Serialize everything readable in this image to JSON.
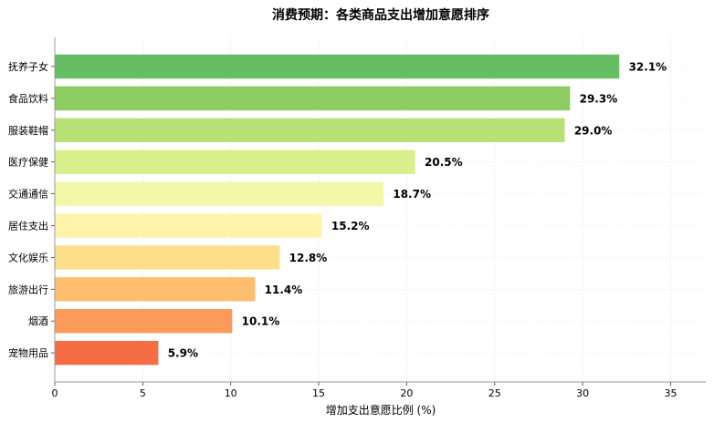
{
  "chart_data": {
    "type": "bar",
    "orientation": "horizontal",
    "title": "消费预期：各类商品支出增加意愿排序",
    "xlabel": "增加支出意愿比例 (%)",
    "ylabel": "",
    "xlim": [
      0,
      37
    ],
    "xticks": [
      0,
      5,
      10,
      15,
      20,
      25,
      30,
      35
    ],
    "grid": true,
    "value_suffix": "%",
    "categories": [
      "抚养子女",
      "食品饮料",
      "服装鞋帽",
      "医疗保健",
      "交通通信",
      "居住支出",
      "文化娱乐",
      "旅游出行",
      "烟酒",
      "宠物用品"
    ],
    "values": [
      32.1,
      29.3,
      29.0,
      20.5,
      18.7,
      15.2,
      12.8,
      11.4,
      10.1,
      5.9
    ],
    "colors": [
      "#66bd63",
      "#8ccc62",
      "#b7e075",
      "#d9ef8b",
      "#f1f8a9",
      "#fff3ac",
      "#fedf8b",
      "#fdbf6f",
      "#fb9a59",
      "#f46d43"
    ]
  }
}
